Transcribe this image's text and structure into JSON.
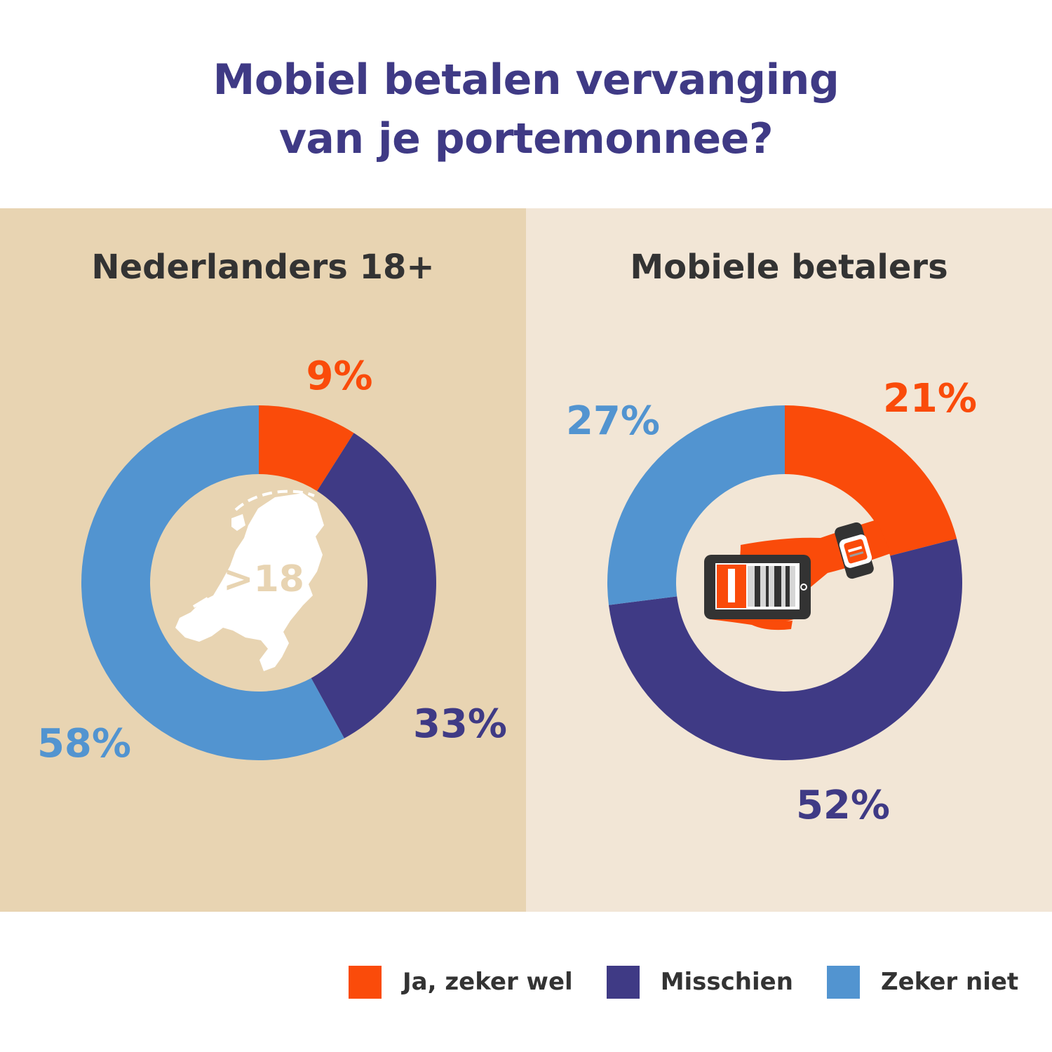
{
  "title_line1": "Mobiel betalen vervanging",
  "title_line2": "van je portemonnee?",
  "colors": {
    "ja": "#fa4b0a",
    "misschien": "#3f3a85",
    "zeker_niet": "#5294d0",
    "panel_left": "#e8d4b2",
    "panel_right": "#f2e6d6",
    "title": "#3f3a85"
  },
  "legend": [
    {
      "label": "Ja, zeker wel",
      "color": "#fa4b0a"
    },
    {
      "label": "Misschien",
      "color": "#3f3a85"
    },
    {
      "label": "Zeker niet",
      "color": "#5294d0"
    }
  ],
  "center_icons": {
    "left": {
      "icon": "netherlands-map-icon",
      "text": ">18"
    },
    "right": {
      "icon": "phone-in-hand-with-smartwatch-icon"
    }
  },
  "chart_data": [
    {
      "type": "pie",
      "style": "donut",
      "title": "Nederlanders 18+",
      "categories": [
        "Ja, zeker wel",
        "Misschien",
        "Zeker niet"
      ],
      "values": [
        9,
        33,
        58
      ],
      "labels": [
        "9%",
        "33%",
        "58%"
      ],
      "colors": [
        "#fa4b0a",
        "#3f3a85",
        "#5294d0"
      ]
    },
    {
      "type": "pie",
      "style": "donut",
      "title": "Mobiele betalers",
      "categories": [
        "Ja, zeker wel",
        "Misschien",
        "Zeker niet"
      ],
      "values": [
        21,
        52,
        27
      ],
      "labels": [
        "21%",
        "52%",
        "27%"
      ],
      "colors": [
        "#fa4b0a",
        "#3f3a85",
        "#5294d0"
      ]
    }
  ]
}
